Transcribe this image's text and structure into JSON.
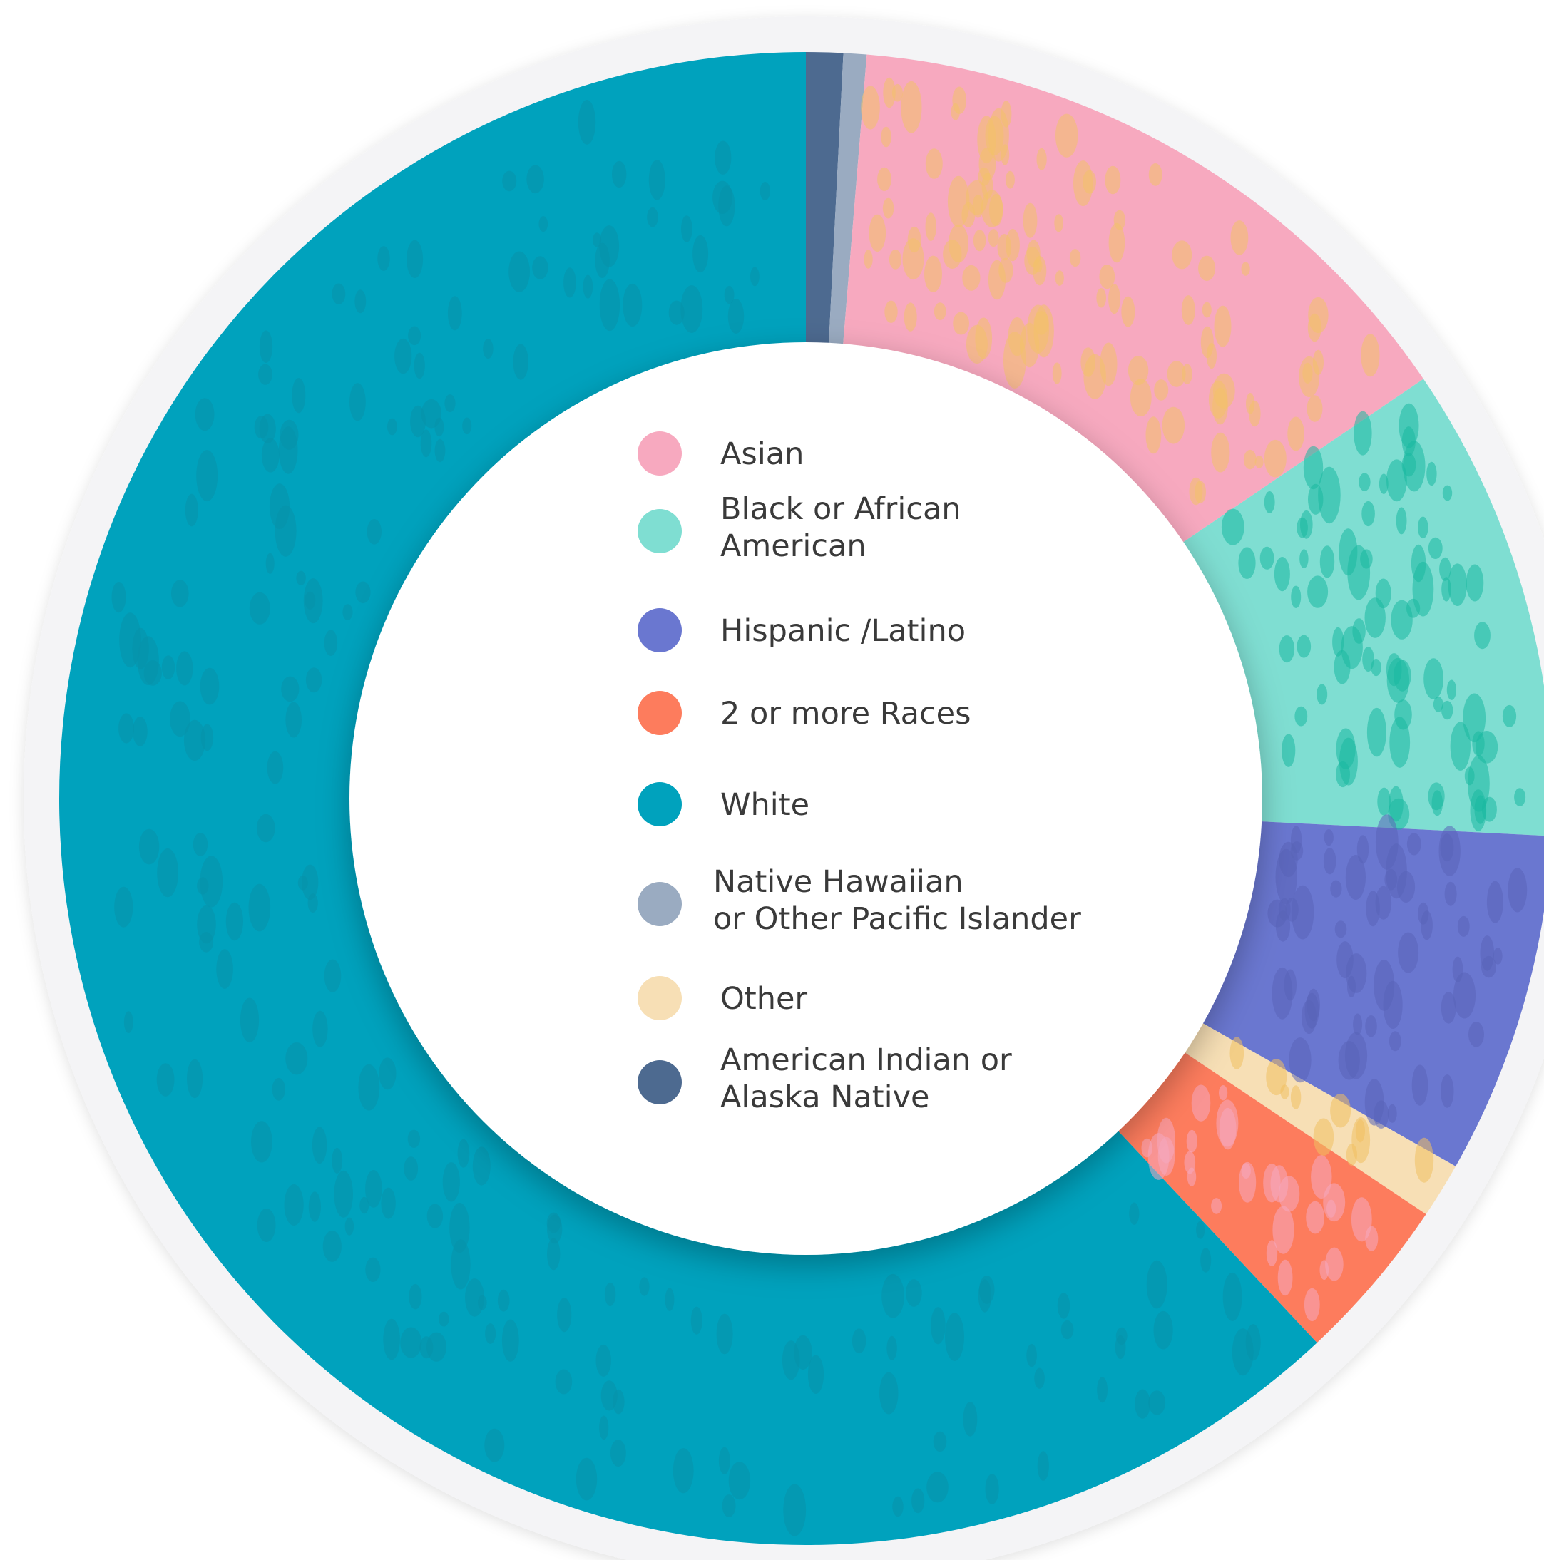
{
  "chart_data": {
    "type": "pie",
    "variant": "donut",
    "title": "",
    "legend_placement": "center",
    "slices": [
      {
        "name": "American Indian or Alaska Native",
        "label_lines": [
          "American Indian or",
          "Alaska Native"
        ],
        "value": 0.8,
        "color": "#4d6a90"
      },
      {
        "name": "Native Hawaiian or Other Pacific Islander",
        "label_lines": [
          "Native Hawaiian",
          "or Other Pacific Islander"
        ],
        "value": 0.5,
        "color": "#9aabc1"
      },
      {
        "name": "Asian",
        "label_lines": [
          "Asian"
        ],
        "value": 14.2,
        "color": "#f7a9bf"
      },
      {
        "name": "Black or African American",
        "label_lines": [
          "Black or African",
          "American"
        ],
        "value": 10.3,
        "color": "#7fded2"
      },
      {
        "name": "Hispanic /Latino",
        "label_lines": [
          "Hispanic /Latino"
        ],
        "value": 7.4,
        "color": "#6a77d0"
      },
      {
        "name": "Other",
        "label_lines": [
          "Other"
        ],
        "value": 1.2,
        "color": "#f7dfb5"
      },
      {
        "name": "2 or more Races",
        "label_lines": [
          "2 or more Races"
        ],
        "value": 3.6,
        "color": "#fd7c5d"
      },
      {
        "name": "White",
        "label_lines": [
          "White"
        ],
        "value": 62.0,
        "color": "#00a2bd"
      }
    ],
    "legend_order": [
      "Asian",
      "Black or African American",
      "Hispanic /Latino",
      "2 or more Races",
      "White",
      "Native Hawaiian or Other Pacific Islander",
      "Other",
      "American Indian or Alaska Native"
    ],
    "background_ring_color": "#f4f4f6",
    "inner_color": "#ffffff"
  }
}
